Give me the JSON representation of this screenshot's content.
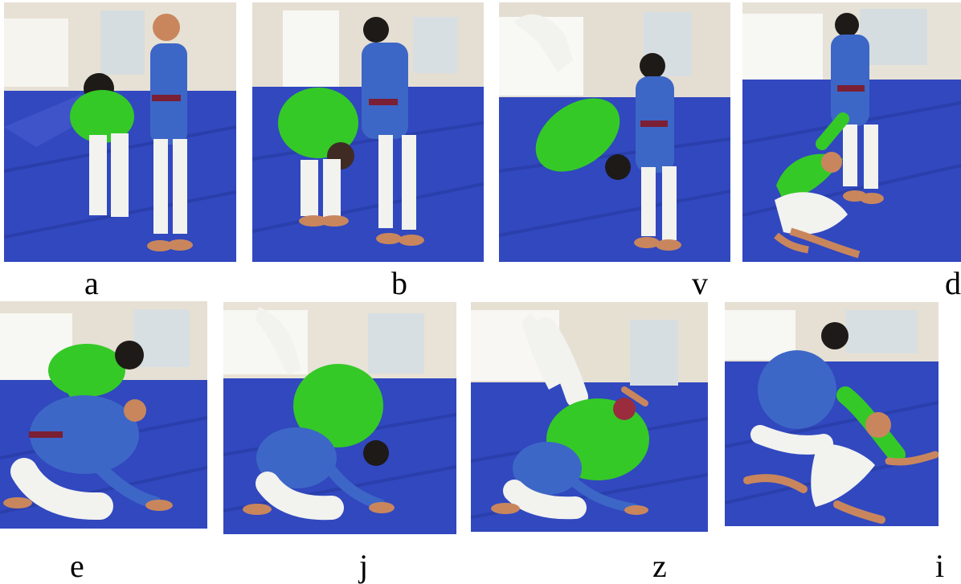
{
  "labels": {
    "a": "a",
    "b": "b",
    "v": "v",
    "d": "d",
    "e": "e",
    "j": "j",
    "z": "z",
    "i": "i"
  },
  "colors": {
    "mat": "#3148bf",
    "mat_dark": "#22389f",
    "wall": "#e3ddd0",
    "window": "#cfd7da",
    "green_gi": "#35c927",
    "blue_gi": "#3d67c6",
    "white_pants": "#f2f2ef",
    "skin": "#c9865d",
    "hair": "#1d1a18",
    "belt": "#7b1f34"
  }
}
